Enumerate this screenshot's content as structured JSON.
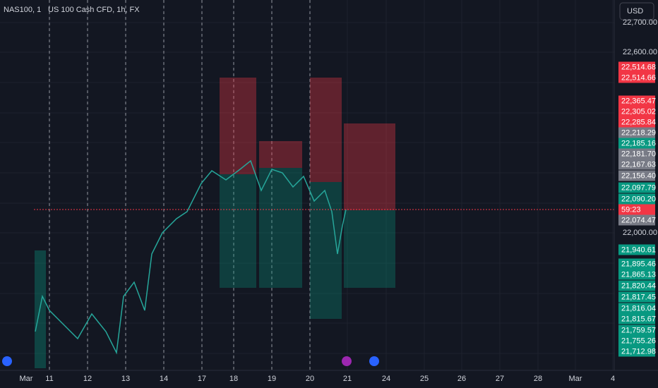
{
  "header": {
    "symbol": "NAS100, 1",
    "description": "US 100 Cash CFD, 1h, FX",
    "currency": "USD"
  },
  "price_axis": {
    "labels": [
      "22,700.00",
      "22,600.00",
      "22,000.00"
    ]
  },
  "price_tags": [
    {
      "text": "22,514.68",
      "color": "#f23645"
    },
    {
      "text": "22,514.66",
      "color": "#f23645"
    },
    {
      "text": "22,365.47",
      "color": "#f23645"
    },
    {
      "text": "22,305.02",
      "color": "#f23645"
    },
    {
      "text": "22,285.84",
      "color": "#f23645"
    },
    {
      "text": "22,218.29",
      "color": "#787b86"
    },
    {
      "text": "22,185.16",
      "color": "#089981"
    },
    {
      "text": "22,181.70",
      "color": "#787b86"
    },
    {
      "text": "22,167.63",
      "color": "#787b86"
    },
    {
      "text": "22,156.40",
      "color": "#787b86"
    },
    {
      "text": "22,097.79",
      "color": "#089981"
    },
    {
      "text": "22,090.20",
      "color": "#089981"
    },
    {
      "text": "59:23",
      "color": "#f23645"
    },
    {
      "text": "22,074.47",
      "color": "#787b86"
    },
    {
      "text": "21,940.61",
      "color": "#089981"
    },
    {
      "text": "21,895.46",
      "color": "#089981"
    },
    {
      "text": "21,865.13",
      "color": "#089981"
    },
    {
      "text": "21,820.44",
      "color": "#089981"
    },
    {
      "text": "21,817.45",
      "color": "#089981"
    },
    {
      "text": "21,816.04",
      "color": "#089981"
    },
    {
      "text": "21,815.67",
      "color": "#089981"
    },
    {
      "text": "21,759.57",
      "color": "#089981"
    },
    {
      "text": "21,755.26",
      "color": "#089981"
    },
    {
      "text": "21,712.98",
      "color": "#089981"
    }
  ],
  "time_axis": {
    "labels": [
      "Mar",
      "11",
      "12",
      "13",
      "14",
      "17",
      "18",
      "19",
      "20",
      "21",
      "24",
      "25",
      "26",
      "27",
      "28",
      "Mar",
      "4"
    ]
  }
}
